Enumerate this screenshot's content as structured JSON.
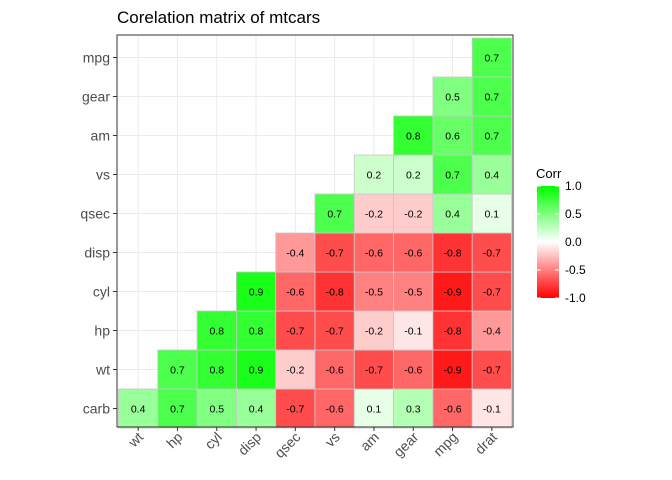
{
  "chart_data": {
    "type": "heatmap",
    "title": "Corelation matrix of mtcars",
    "x_categories": [
      "wt",
      "hp",
      "cyl",
      "disp",
      "qsec",
      "vs",
      "am",
      "gear",
      "mpg",
      "drat"
    ],
    "y_categories": [
      "carb",
      "wt",
      "hp",
      "cyl",
      "disp",
      "qsec",
      "vs",
      "am",
      "gear",
      "mpg"
    ],
    "cells": [
      {
        "x": "wt",
        "y": "carb",
        "value": 0.4
      },
      {
        "x": "hp",
        "y": "carb",
        "value": 0.7
      },
      {
        "x": "cyl",
        "y": "carb",
        "value": 0.5
      },
      {
        "x": "disp",
        "y": "carb",
        "value": 0.4
      },
      {
        "x": "qsec",
        "y": "carb",
        "value": -0.7
      },
      {
        "x": "vs",
        "y": "carb",
        "value": -0.6
      },
      {
        "x": "am",
        "y": "carb",
        "value": 0.1
      },
      {
        "x": "gear",
        "y": "carb",
        "value": 0.3
      },
      {
        "x": "mpg",
        "y": "carb",
        "value": -0.6
      },
      {
        "x": "drat",
        "y": "carb",
        "value": -0.1
      },
      {
        "x": "hp",
        "y": "wt",
        "value": 0.7
      },
      {
        "x": "cyl",
        "y": "wt",
        "value": 0.8
      },
      {
        "x": "disp",
        "y": "wt",
        "value": 0.9
      },
      {
        "x": "qsec",
        "y": "wt",
        "value": -0.2
      },
      {
        "x": "vs",
        "y": "wt",
        "value": -0.6
      },
      {
        "x": "am",
        "y": "wt",
        "value": -0.7
      },
      {
        "x": "gear",
        "y": "wt",
        "value": -0.6
      },
      {
        "x": "mpg",
        "y": "wt",
        "value": -0.9
      },
      {
        "x": "drat",
        "y": "wt",
        "value": -0.7
      },
      {
        "x": "cyl",
        "y": "hp",
        "value": 0.8
      },
      {
        "x": "disp",
        "y": "hp",
        "value": 0.8
      },
      {
        "x": "qsec",
        "y": "hp",
        "value": -0.7
      },
      {
        "x": "vs",
        "y": "hp",
        "value": -0.7
      },
      {
        "x": "am",
        "y": "hp",
        "value": -0.2
      },
      {
        "x": "gear",
        "y": "hp",
        "value": -0.1
      },
      {
        "x": "mpg",
        "y": "hp",
        "value": -0.8
      },
      {
        "x": "drat",
        "y": "hp",
        "value": -0.4
      },
      {
        "x": "disp",
        "y": "cyl",
        "value": 0.9
      },
      {
        "x": "qsec",
        "y": "cyl",
        "value": -0.6
      },
      {
        "x": "vs",
        "y": "cyl",
        "value": -0.8
      },
      {
        "x": "am",
        "y": "cyl",
        "value": -0.5
      },
      {
        "x": "gear",
        "y": "cyl",
        "value": -0.5
      },
      {
        "x": "mpg",
        "y": "cyl",
        "value": -0.9
      },
      {
        "x": "drat",
        "y": "cyl",
        "value": -0.7
      },
      {
        "x": "qsec",
        "y": "disp",
        "value": -0.4
      },
      {
        "x": "vs",
        "y": "disp",
        "value": -0.7
      },
      {
        "x": "am",
        "y": "disp",
        "value": -0.6
      },
      {
        "x": "gear",
        "y": "disp",
        "value": -0.6
      },
      {
        "x": "mpg",
        "y": "disp",
        "value": -0.8
      },
      {
        "x": "drat",
        "y": "disp",
        "value": -0.7
      },
      {
        "x": "vs",
        "y": "qsec",
        "value": 0.7
      },
      {
        "x": "am",
        "y": "qsec",
        "value": -0.2
      },
      {
        "x": "gear",
        "y": "qsec",
        "value": -0.2
      },
      {
        "x": "mpg",
        "y": "qsec",
        "value": 0.4
      },
      {
        "x": "drat",
        "y": "qsec",
        "value": 0.1
      },
      {
        "x": "am",
        "y": "vs",
        "value": 0.2
      },
      {
        "x": "gear",
        "y": "vs",
        "value": 0.2
      },
      {
        "x": "mpg",
        "y": "vs",
        "value": 0.7
      },
      {
        "x": "drat",
        "y": "vs",
        "value": 0.4
      },
      {
        "x": "gear",
        "y": "am",
        "value": 0.8
      },
      {
        "x": "mpg",
        "y": "am",
        "value": 0.6
      },
      {
        "x": "drat",
        "y": "am",
        "value": 0.7
      },
      {
        "x": "mpg",
        "y": "gear",
        "value": 0.5
      },
      {
        "x": "drat",
        "y": "gear",
        "value": 0.7
      },
      {
        "x": "drat",
        "y": "mpg",
        "value": 0.7
      }
    ],
    "color_scale": {
      "low": "#ff0000",
      "mid": "#ffffff",
      "high": "#00ff00",
      "limits": [
        -1,
        1
      ]
    },
    "legend": {
      "title": "Corr",
      "ticks": [
        "1.0",
        "0.5",
        "0.0",
        "-0.5",
        "-1.0"
      ],
      "tick_values": [
        1.0,
        0.5,
        0.0,
        -0.5,
        -1.0
      ],
      "position": "right"
    },
    "grid": true
  }
}
